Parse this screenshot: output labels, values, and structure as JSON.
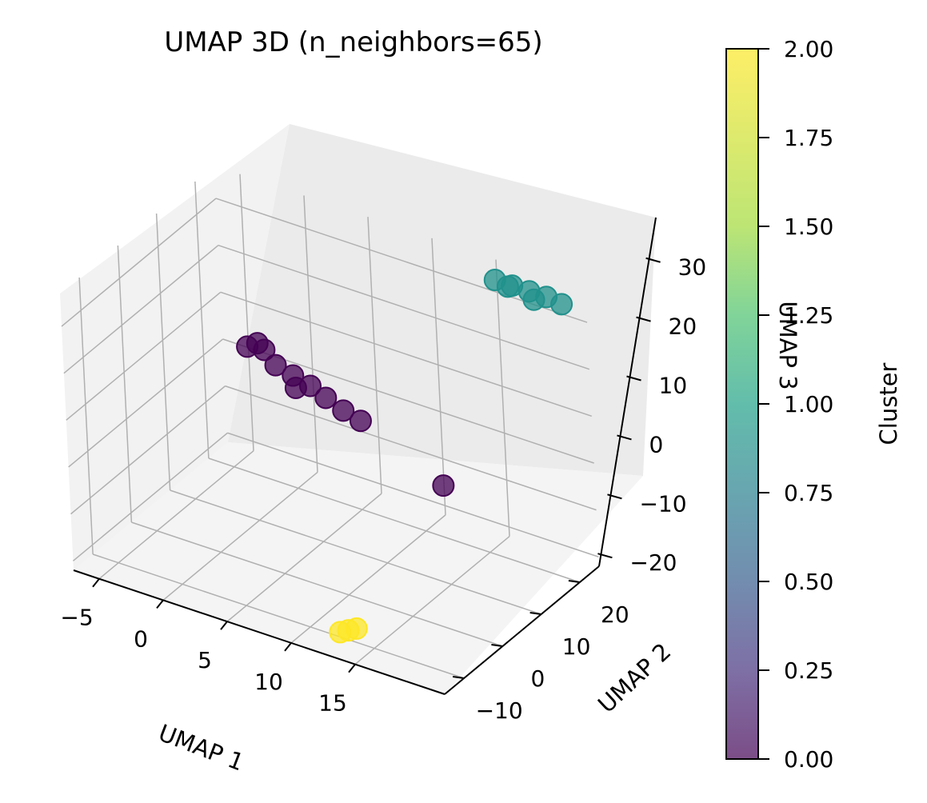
{
  "chart_data": {
    "type": "scatter",
    "projection": "3d",
    "title": "UMAP 3D (n_neighbors=65)",
    "xlabel": "UMAP 1",
    "ylabel": "UMAP 2",
    "zlabel": "UMAP 3",
    "xticks": [
      "−5",
      "0",
      "5",
      "10",
      "15"
    ],
    "yticks": [
      "−10",
      "0",
      "10",
      "20"
    ],
    "zticks": [
      "−20",
      "−10",
      "0",
      "10",
      "20",
      "30"
    ],
    "xlim": [
      -7,
      22
    ],
    "ylim": [
      -15,
      25
    ],
    "zlim": [
      -22,
      37
    ],
    "grid": true,
    "colorbar": {
      "label": "Cluster",
      "range": [
        0,
        2
      ],
      "ticks": [
        "0.00",
        "0.25",
        "0.50",
        "0.75",
        "1.00",
        "1.25",
        "1.50",
        "1.75",
        "2.00"
      ],
      "colormap": "viridis",
      "alpha": 0.7
    },
    "clusters": [
      {
        "cluster": 0,
        "color": "#440154",
        "points": [
          {
            "x": -3.5,
            "y": 20.0,
            "z": 5.0
          },
          {
            "x": -2.0,
            "y": 19.5,
            "z": 6.0
          },
          {
            "x": -1.0,
            "y": 19.0,
            "z": 4.0
          },
          {
            "x": 0.5,
            "y": 18.5,
            "z": 3.5
          },
          {
            "x": 2.0,
            "y": 18.0,
            "z": 3.0
          },
          {
            "x": 3.5,
            "y": 17.0,
            "z": 2.5
          },
          {
            "x": 5.0,
            "y": 16.5,
            "z": 1.5
          },
          {
            "x": 6.5,
            "y": 16.0,
            "z": 1.0
          },
          {
            "x": -3.0,
            "y": 21.0,
            "z": 5.5
          },
          {
            "x": 1.0,
            "y": 17.5,
            "z": 2.0
          },
          {
            "x": 12.5,
            "y": 17.0,
            "z": -8.0
          }
        ]
      },
      {
        "cluster": 1,
        "color": "#21918c",
        "points": [
          {
            "x": 15.0,
            "y": 24.5,
            "z": 33.0
          },
          {
            "x": 16.5,
            "y": 24.0,
            "z": 33.5
          },
          {
            "x": 18.0,
            "y": 23.5,
            "z": 34.0
          },
          {
            "x": 19.5,
            "y": 23.0,
            "z": 34.5
          },
          {
            "x": 21.0,
            "y": 22.0,
            "z": 35.0
          },
          {
            "x": 16.0,
            "y": 24.5,
            "z": 32.5
          },
          {
            "x": 18.5,
            "y": 23.0,
            "z": 33.0
          }
        ]
      },
      {
        "cluster": 2,
        "color": "#fde725",
        "points": [
          {
            "x": 13.0,
            "y": -10.0,
            "z": -20.0
          },
          {
            "x": 13.5,
            "y": -9.5,
            "z": -19.5
          },
          {
            "x": 12.5,
            "y": -10.5,
            "z": -20.5
          }
        ]
      }
    ]
  }
}
